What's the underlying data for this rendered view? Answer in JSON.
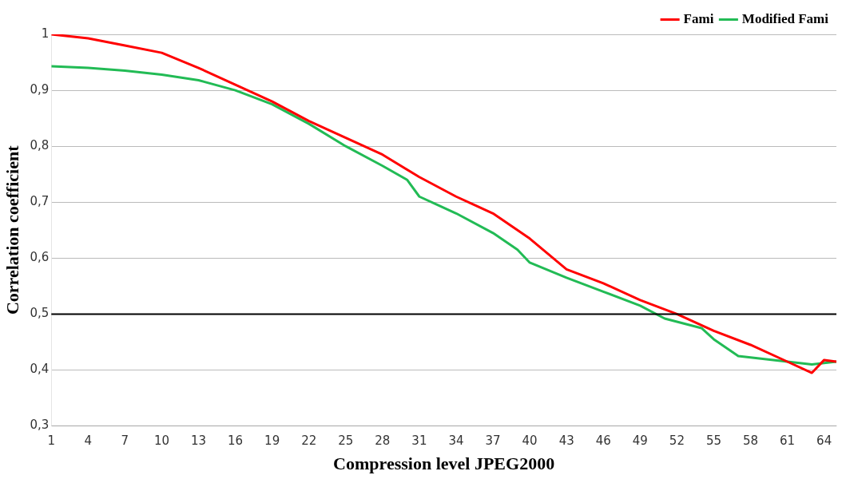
{
  "chart_data": {
    "type": "line",
    "xlabel": "Compression level JPEG2000",
    "ylabel": "Correlation coefficient",
    "xlim": [
      1,
      65
    ],
    "xticks": [
      1,
      4,
      7,
      10,
      13,
      16,
      19,
      22,
      25,
      28,
      31,
      34,
      37,
      40,
      43,
      46,
      49,
      52,
      55,
      58,
      61,
      64
    ],
    "ylim": [
      0.3,
      1
    ],
    "yticks": [
      {
        "value": 0.3,
        "label": "0,3"
      },
      {
        "value": 0.4,
        "label": "0,4"
      },
      {
        "value": 0.5,
        "label": "0,5"
      },
      {
        "value": 0.6,
        "label": "0,6"
      },
      {
        "value": 0.7,
        "label": "0,7"
      },
      {
        "value": 0.8,
        "label": "0,8"
      },
      {
        "value": 0.9,
        "label": "0,9"
      },
      {
        "value": 1,
        "label": "1"
      }
    ],
    "grid": "y",
    "legend": "top right",
    "marker": "none",
    "line_style": "solid",
    "ref_lines": [
      {
        "axis": "y",
        "value": 0.5,
        "color": "#000000"
      }
    ],
    "series": [
      {
        "name": "Fami",
        "color": "#ff0000",
        "x": [
          1,
          4,
          7,
          10,
          13,
          16,
          19,
          22,
          25,
          28,
          31,
          34,
          37,
          40,
          43,
          46,
          49,
          52,
          55,
          58,
          61,
          63,
          64,
          65
        ],
        "values": [
          1.0,
          0.993,
          0.98,
          0.967,
          0.94,
          0.91,
          0.88,
          0.845,
          0.815,
          0.785,
          0.745,
          0.71,
          0.68,
          0.635,
          0.58,
          0.555,
          0.525,
          0.5,
          0.47,
          0.445,
          0.415,
          0.395,
          0.418,
          0.415
        ]
      },
      {
        "name": "Modified Fami",
        "color": "#22bb55",
        "x": [
          1,
          4,
          7,
          10,
          13,
          16,
          19,
          22,
          25,
          28,
          30,
          31,
          34,
          37,
          39,
          40,
          43,
          46,
          49,
          51,
          54,
          55,
          57,
          61,
          63,
          65
        ],
        "values": [
          0.943,
          0.94,
          0.935,
          0.928,
          0.918,
          0.9,
          0.875,
          0.84,
          0.8,
          0.765,
          0.74,
          0.71,
          0.68,
          0.645,
          0.615,
          0.592,
          0.565,
          0.54,
          0.515,
          0.492,
          0.475,
          0.455,
          0.425,
          0.415,
          0.41,
          0.415
        ]
      }
    ]
  }
}
